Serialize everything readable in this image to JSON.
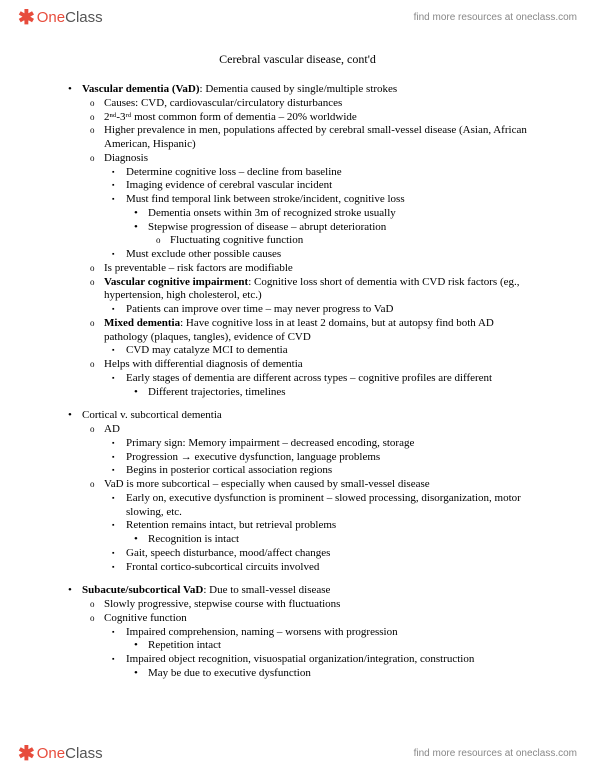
{
  "brand": {
    "icon": "✱",
    "one": "One",
    "class": "Class",
    "tagline": "find more resources at oneclass.com"
  },
  "title": "Cerebral vascular disease, cont'd",
  "s1": {
    "h": "Vascular dementia (VaD)",
    "hAfter": ": Dementia caused by single/multiple strokes",
    "a": "Causes: CVD, cardiovascular/circulatory disturbances",
    "b": "2ⁿᵈ-3ʳᵈ most common form of dementia – 20% worldwide",
    "c": "Higher prevalence in men, populations affected by cerebral small-vessel disease (Asian, African American, Hispanic)",
    "d": "Diagnosis",
    "d1": "Determine cognitive loss – decline from baseline",
    "d2": "Imaging evidence of cerebral vascular incident",
    "d3": "Must find temporal link between stroke/incident, cognitive loss",
    "d3a": "Dementia onsets within 3m of recognized stroke usually",
    "d3b": "Stepwise progression of disease – abrupt deterioration",
    "d3b1": "Fluctuating cognitive function",
    "d4": "Must exclude other possible causes",
    "e": "Is preventable – risk factors are modifiable",
    "fH": "Vascular cognitive impairment",
    "fAfter": ": Cognitive loss short of dementia with CVD risk factors (eg., hypertension, high cholesterol, etc.)",
    "f1": "Patients can improve over time – may never progress to VaD",
    "gH": "Mixed dementia",
    "gAfter": ": Have cognitive loss in at least 2 domains, but at autopsy find both AD pathology (plaques, tangles), evidence of CVD",
    "g1": "CVD may catalyze MCI to dementia",
    "h2": "Helps with differential diagnosis of dementia",
    "h2a": "Early stages of dementia are different across types – cognitive profiles are different",
    "h2a1": "Different trajectories, timelines"
  },
  "s2": {
    "h": "Cortical v. subcortical dementia",
    "a": "AD",
    "a1": "Primary sign: Memory impairment – decreased encoding, storage",
    "a2": "Progression → executive dysfunction, language problems",
    "a3": "Begins in posterior cortical association regions",
    "b": "VaD is more subcortical – especially when caused by small-vessel disease",
    "b1": "Early on, executive dysfunction is prominent – slowed processing, disorganization, motor slowing, etc.",
    "b2": "Retention remains intact, but retrieval problems",
    "b2a": "Recognition is intact",
    "b3": "Gait, speech disturbance, mood/affect changes",
    "b4": "Frontal cortico-subcortical circuits involved"
  },
  "s3": {
    "hB": "Subacute/subcortical VaD",
    "hAfter": ": Due to small-vessel disease",
    "a": "Slowly progressive, stepwise course with fluctuations",
    "b": "Cognitive function",
    "b1": "Impaired comprehension, naming – worsens with progression",
    "b1a": "Repetition intact",
    "b2": "Impaired object recognition, visuospatial organization/integration, construction",
    "b2a": "May be due to executive dysfunction"
  }
}
